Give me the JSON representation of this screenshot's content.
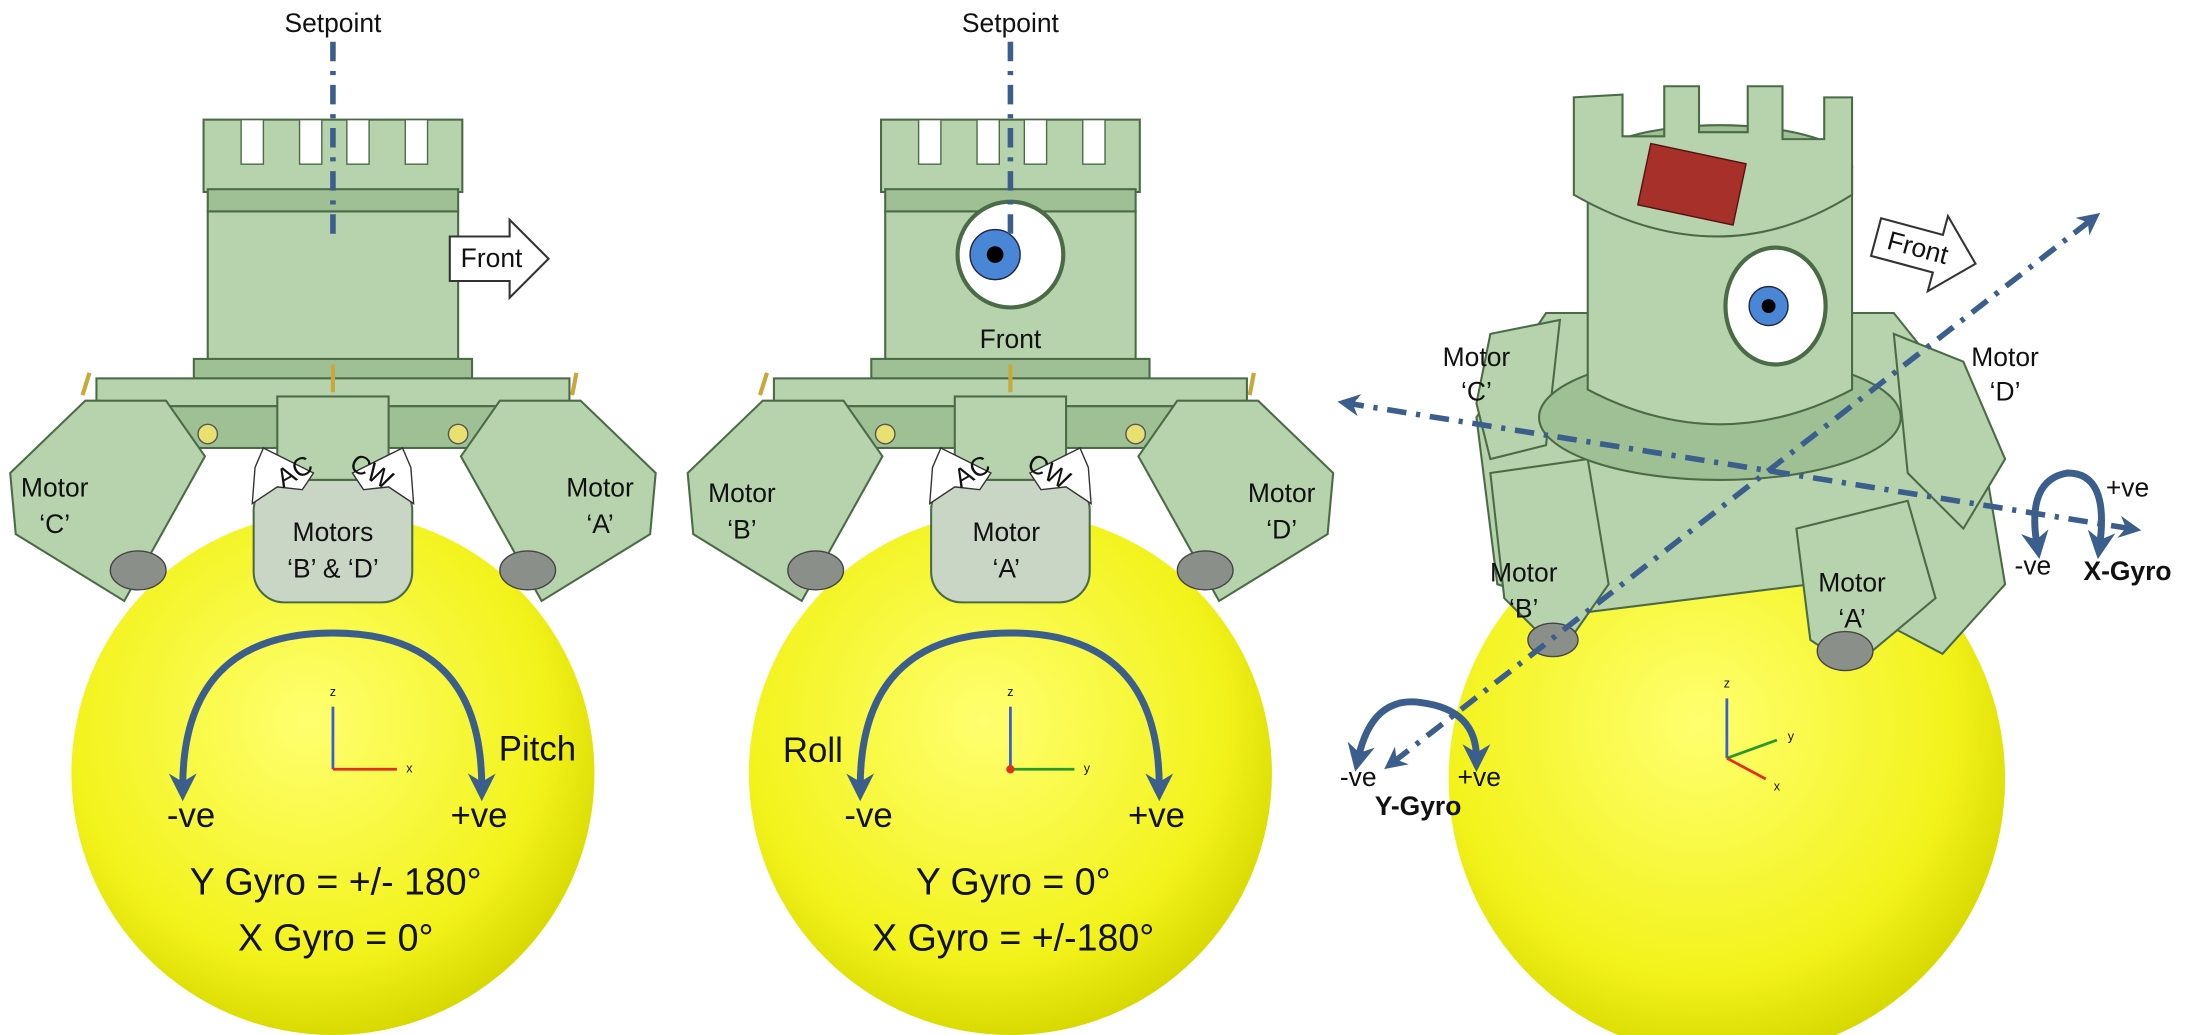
{
  "panels": [
    {
      "setpoint": "Setpoint",
      "front": "Front",
      "ac": "AC",
      "cw": "CW",
      "motors": [
        {
          "lines": [
            "Motor",
            "‘C’"
          ]
        },
        {
          "lines": [
            "Motor",
            "‘A’"
          ]
        },
        {
          "lines": [
            "Motors",
            "‘B’ & ‘D’"
          ]
        }
      ],
      "rotation": "Pitch",
      "negative": "-ve",
      "positive": "+ve",
      "readings": [
        "Y Gyro = +/- 180°",
        "X Gyro = 0°"
      ],
      "axes": [
        "z",
        "x"
      ]
    },
    {
      "setpoint": "Setpoint",
      "front": "Front",
      "ac": "AC",
      "cw": "CW",
      "motors": [
        {
          "lines": [
            "Motor",
            "‘B’"
          ]
        },
        {
          "lines": [
            "Motor",
            "‘D’"
          ]
        },
        {
          "lines": [
            "Motor",
            "‘A’"
          ]
        }
      ],
      "rotation": "Roll",
      "negative": "-ve",
      "positive": "+ve",
      "readings": [
        "Y Gyro = 0°",
        "X Gyro = +/-180°"
      ],
      "axes": [
        "z",
        "y"
      ]
    },
    {
      "front": "Front",
      "motors": [
        {
          "lines": [
            "Motor",
            "‘C’"
          ]
        },
        {
          "lines": [
            "Motor",
            "‘D’"
          ]
        },
        {
          "lines": [
            "Motor",
            "‘B’"
          ]
        },
        {
          "lines": [
            "Motor",
            "‘A’"
          ]
        }
      ],
      "x_gyro": {
        "label": "X-Gyro",
        "positive": "+ve",
        "negative": "-ve"
      },
      "y_gyro": {
        "label": "Y-Gyro",
        "negative": "-ve",
        "positive": "+ve"
      },
      "axes": [
        "z",
        "y",
        "x"
      ]
    }
  ]
}
